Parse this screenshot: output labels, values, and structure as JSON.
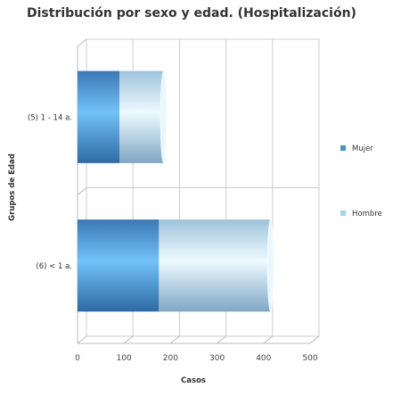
{
  "chart_data": {
    "type": "bar",
    "orientation": "horizontal",
    "stacked": true,
    "title": "Distribución por sexo y edad. (Hospitalización)",
    "xlabel": "Casos",
    "ylabel": "Grupos de Edad",
    "xlim": [
      0,
      500
    ],
    "x_ticks": [
      0,
      100,
      200,
      300,
      400,
      500
    ],
    "categories": [
      "(5) 1 - 14 a.",
      "(6) < 1 a."
    ],
    "series": [
      {
        "name": "Mujer",
        "values": [
          90,
          175
        ],
        "color": "#4a90c8"
      },
      {
        "name": "Hombre",
        "values": [
          95,
          240
        ],
        "color": "#b9dbe8"
      }
    ],
    "legend_position": "right",
    "grid": true
  }
}
